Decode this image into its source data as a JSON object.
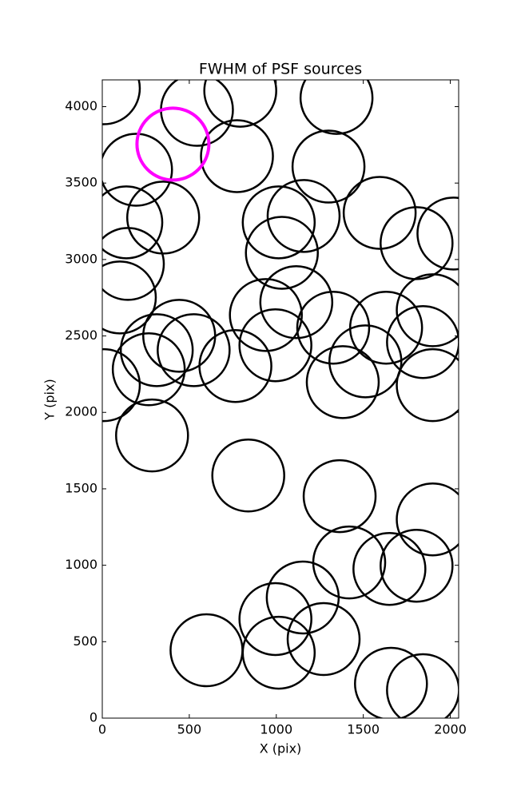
{
  "chart_data": {
    "type": "scatter",
    "title": "FWHM of PSF sources",
    "x_label": "X (pix)",
    "y_label": "Y (pix)",
    "xlim": [
      0,
      2048
    ],
    "ylim": [
      0,
      4175
    ],
    "xticks": [
      0,
      500,
      1000,
      1500,
      2000
    ],
    "yticks": [
      0,
      500,
      1000,
      1500,
      2000,
      2500,
      3000,
      3500,
      4000
    ],
    "marker": "open-circle",
    "series": [
      {
        "color": "#000000",
        "x": [
          9,
          544,
          793,
          1346,
          194,
          774,
          1300,
          138,
          350,
          1014,
          1157,
          1594,
          1806,
          2018,
          147,
          101,
          1032,
          1115,
          940,
          1899,
          442,
          313,
          525,
          995,
          1327,
          1631,
          1843,
          9,
          267,
          765,
          1382,
          1512,
          1899,
          286,
          839,
          1364,
          1899,
          1419,
          1650,
          1806,
          1152,
          995,
          1272,
          599,
          1014,
          1659,
          1843
        ],
        "y": [
          4120,
          3979,
          4104,
          4057,
          3587,
          3676,
          3608,
          3243,
          3274,
          3243,
          3285,
          3305,
          3107,
          3170,
          2971,
          2752,
          3044,
          2721,
          2637,
          2668,
          2501,
          2407,
          2407,
          2439,
          2554,
          2554,
          2460,
          2178,
          2282,
          2303,
          2198,
          2334,
          2178,
          1849,
          1587,
          1452,
          1300,
          1018,
          976,
          997,
          789,
          648,
          517,
          444,
          428,
          225,
          183
        ]
      },
      {
        "color": "#ff00ff",
        "x": [
          406
        ],
        "y": [
          3755
        ]
      }
    ]
  }
}
